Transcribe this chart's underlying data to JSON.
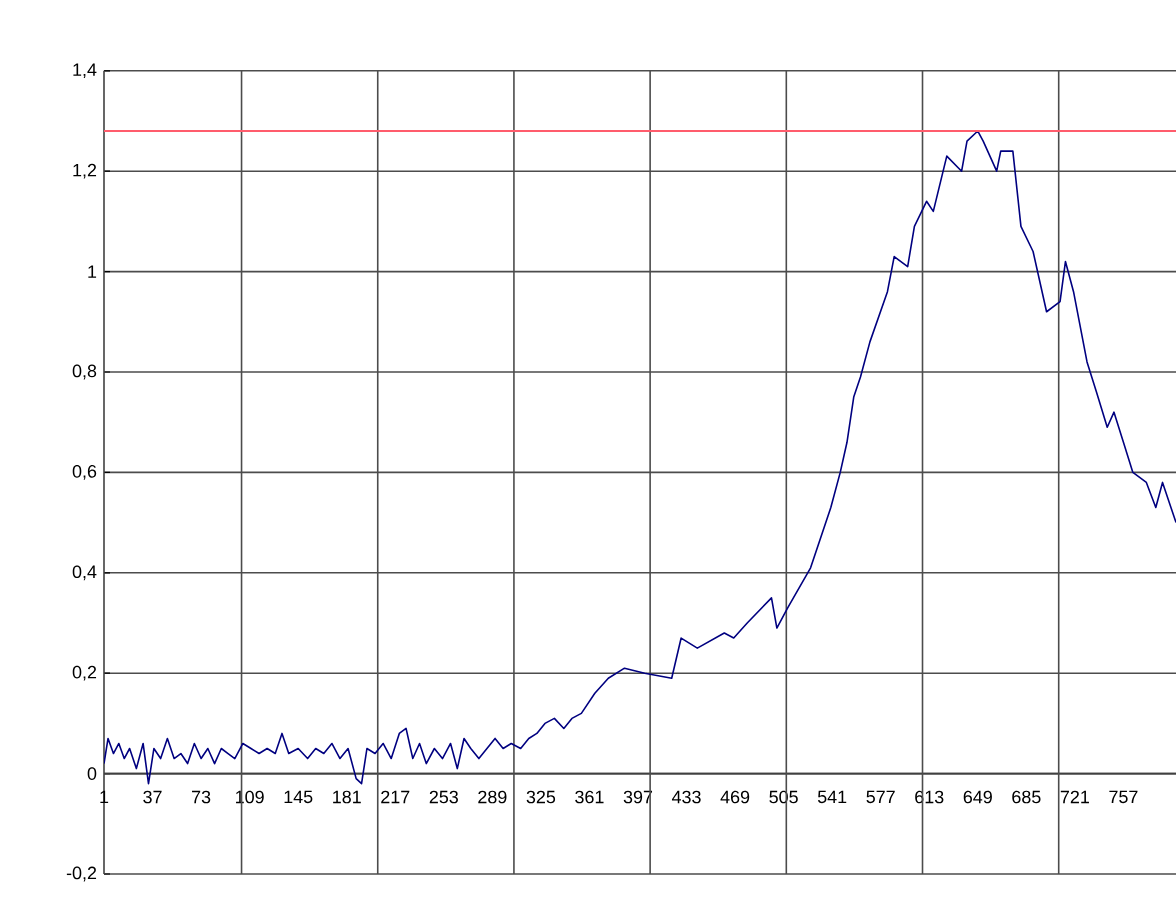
{
  "chart_data": {
    "type": "line",
    "x": [
      1,
      4,
      8,
      12,
      16,
      20,
      25,
      30,
      34,
      38,
      43,
      48,
      53,
      58,
      63,
      68,
      73,
      78,
      83,
      88,
      93,
      98,
      104,
      110,
      116,
      122,
      128,
      133,
      138,
      145,
      152,
      158,
      164,
      170,
      176,
      182,
      188,
      192,
      196,
      202,
      208,
      214,
      220,
      225,
      230,
      235,
      240,
      246,
      252,
      258,
      263,
      268,
      273,
      279,
      285,
      291,
      297,
      303,
      310,
      316,
      322,
      328,
      335,
      342,
      348,
      355,
      365,
      375,
      387,
      402,
      422,
      429,
      441,
      461,
      468,
      478,
      496,
      500,
      508,
      525,
      540,
      547,
      552,
      557,
      562,
      569,
      582,
      587,
      597,
      602,
      611,
      616,
      626,
      637,
      641,
      649,
      653,
      663,
      666,
      675,
      681,
      690,
      700,
      710,
      714,
      720,
      730,
      737,
      745,
      750,
      757,
      764,
      774,
      781,
      786,
      796
    ],
    "series": [
      {
        "color": "#000080",
        "values": [
          0.02,
          0.07,
          0.04,
          0.06,
          0.03,
          0.05,
          0.01,
          0.06,
          -0.02,
          0.05,
          0.03,
          0.07,
          0.03,
          0.04,
          0.02,
          0.06,
          0.03,
          0.05,
          0.02,
          0.05,
          0.04,
          0.03,
          0.06,
          0.05,
          0.04,
          0.05,
          0.04,
          0.08,
          0.04,
          0.05,
          0.03,
          0.05,
          0.04,
          0.06,
          0.03,
          0.05,
          -0.01,
          -0.02,
          0.05,
          0.04,
          0.06,
          0.03,
          0.08,
          0.09,
          0.03,
          0.06,
          0.02,
          0.05,
          0.03,
          0.06,
          0.01,
          0.07,
          0.05,
          0.03,
          0.05,
          0.07,
          0.05,
          0.06,
          0.05,
          0.07,
          0.08,
          0.1,
          0.11,
          0.09,
          0.11,
          0.12,
          0.16,
          0.19,
          0.21,
          0.2,
          0.19,
          0.27,
          0.25,
          0.28,
          0.27,
          0.3,
          0.35,
          0.29,
          0.33,
          0.41,
          0.53,
          0.6,
          0.66,
          0.75,
          0.79,
          0.86,
          0.96,
          1.03,
          1.01,
          1.09,
          1.14,
          1.12,
          1.23,
          1.2,
          1.26,
          1.28,
          1.26,
          1.2,
          1.24,
          1.24,
          1.09,
          1.04,
          0.92,
          0.94,
          1.02,
          0.96,
          0.82,
          0.76,
          0.69,
          0.72,
          0.66,
          0.6,
          0.58,
          0.53,
          0.58,
          0.5
        ]
      }
    ],
    "xlim": [
      1,
      796
    ],
    "ylim": [
      -0.2,
      1.4
    ],
    "xticks": [
      1,
      37,
      73,
      109,
      145,
      181,
      217,
      253,
      289,
      325,
      361,
      397,
      433,
      469,
      505,
      541,
      577,
      613,
      649,
      685,
      721,
      757,
      {
        "value": 103,
        "label": null
      },
      {
        "value": 204,
        "label": null
      },
      {
        "value": 305,
        "label": null
      },
      {
        "value": 406,
        "label": null
      },
      {
        "value": 507,
        "label": null
      },
      {
        "value": 608,
        "label": null
      },
      {
        "value": 709,
        "label": null
      }
    ],
    "yticks": [
      {
        "value": -0.2,
        "label": "-0,2"
      },
      0,
      {
        "value": 0.2,
        "label": "0,2"
      },
      {
        "value": 0.4,
        "label": "0,4"
      },
      {
        "value": 0.6,
        "label": "0,6"
      },
      {
        "value": 0.8,
        "label": "0,8"
      },
      1,
      {
        "value": 1.2,
        "label": "1,2"
      },
      {
        "value": 1.4,
        "label": "1,4"
      }
    ],
    "ref_lines": [
      {
        "axis": "y",
        "value": 1.28,
        "color": "#ff5c6c"
      }
    ],
    "grid": true,
    "marker": "none",
    "line_style": "solid"
  }
}
